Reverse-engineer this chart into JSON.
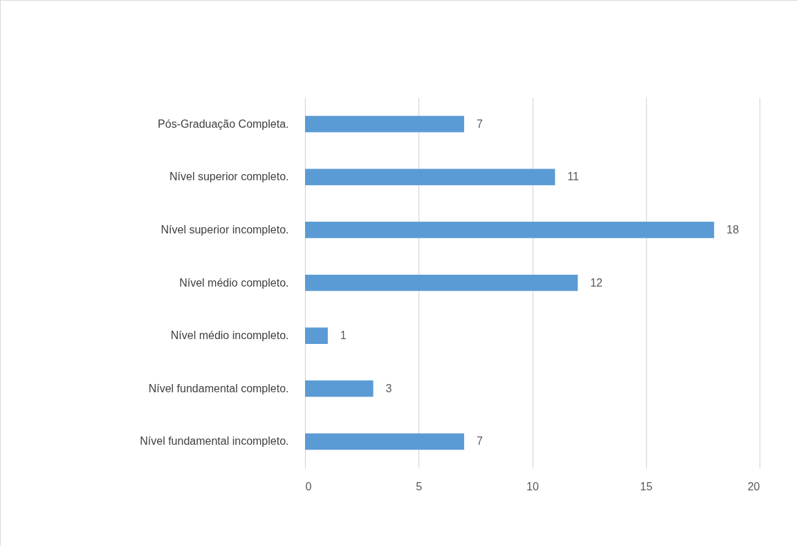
{
  "chart_data": {
    "type": "bar",
    "orientation": "horizontal",
    "categories": [
      "Pós-Graduação Completa.",
      "Nível superior completo.",
      "Nível superior incompleto.",
      "Nível médio completo.",
      "Nível médio incompleto.",
      "Nível fundamental completo.",
      "Nível fundamental incompleto."
    ],
    "values": [
      7,
      11,
      18,
      12,
      1,
      3,
      7
    ],
    "color": "#5b9bd5",
    "xlim": [
      0,
      20
    ],
    "xticks": [
      0,
      5,
      10,
      15,
      20
    ],
    "grid": "x",
    "data_labels": true
  }
}
